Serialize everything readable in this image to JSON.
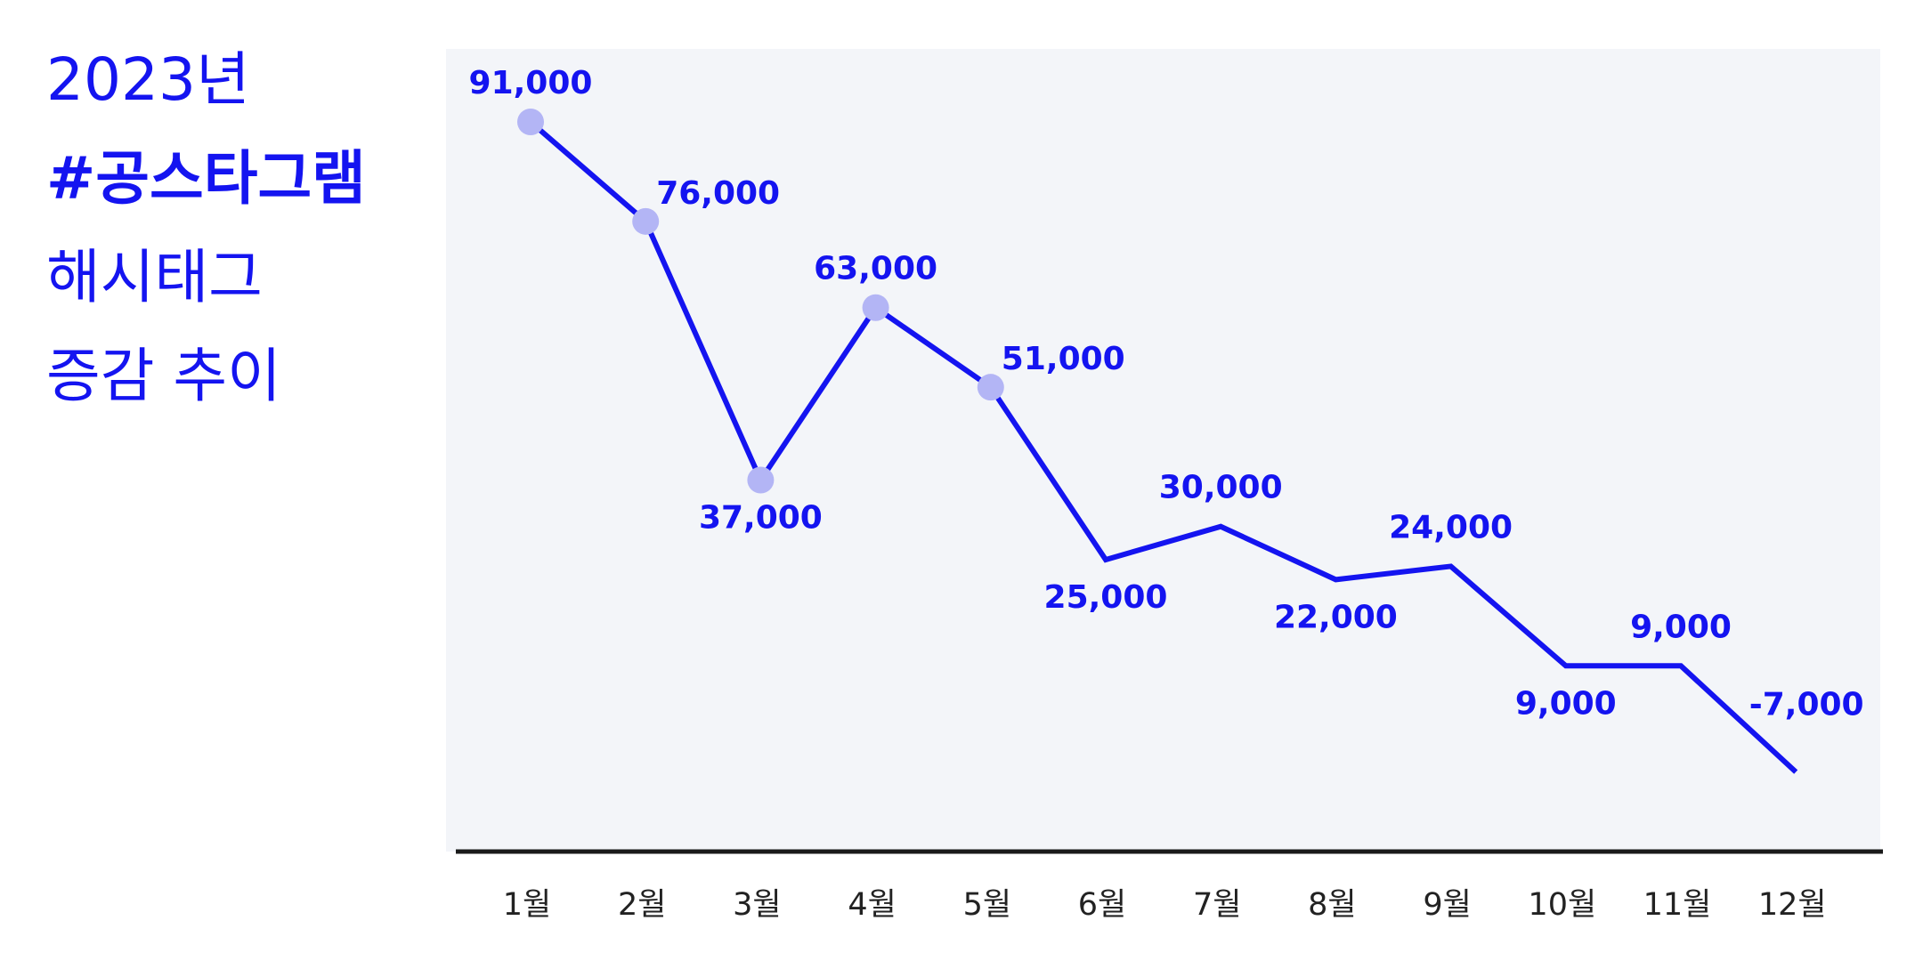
{
  "title_lines": [
    "2023년",
    "#공스타그램",
    "해시태그",
    "증감 추이"
  ],
  "chart_data": {
    "type": "line",
    "categories": [
      "1월",
      "2월",
      "3월",
      "4월",
      "5월",
      "6월",
      "7월",
      "8월",
      "9월",
      "10월",
      "11월",
      "12월"
    ],
    "values": [
      91000,
      76000,
      37000,
      63000,
      51000,
      25000,
      30000,
      22000,
      24000,
      9000,
      9000,
      -7000
    ],
    "value_labels": [
      "91,000",
      "76,000",
      "37,000",
      "63,000",
      "51,000",
      "25,000",
      "30,000",
      "22,000",
      "24,000",
      "9,000",
      "9,000",
      "-7,000"
    ],
    "markers": [
      true,
      true,
      true,
      true,
      true,
      false,
      false,
      false,
      false,
      false,
      false,
      false
    ],
    "color": "#1414f0",
    "marker_color": "#b3b5f5",
    "ylim": [
      -19000,
      102000
    ]
  }
}
